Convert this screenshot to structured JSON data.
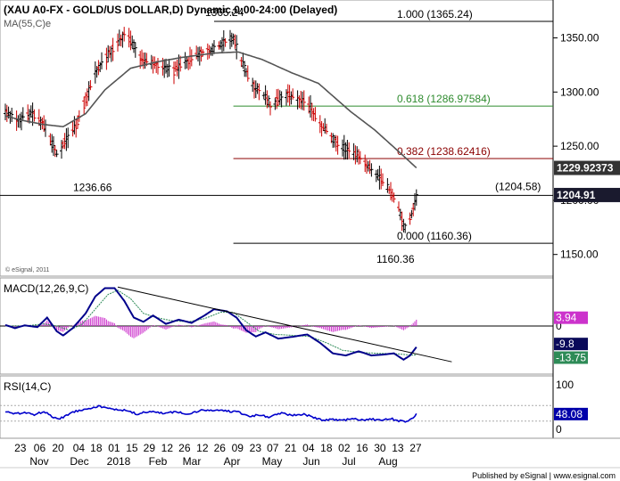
{
  "header": {
    "title": "(XAU A0-FX - GOLD/US DOLLAR,D) Dynamic,0:00-24:00 (Delayed)",
    "ma_label": "MA(55,C)e",
    "copyright": "© eSignal, 2011"
  },
  "footer": {
    "published": "Published by eSignal | www.esignal.com"
  },
  "colors": {
    "price_up": "#000000",
    "price_down": "#cc0000",
    "ma": "#555555",
    "fib_100": "#000000",
    "fib_618": "#2e8b2e",
    "fib_382": "#8b0000",
    "macd_line": "#00008b",
    "signal_line": "#2e8b57",
    "histogram": "#cc33cc",
    "rsi_line": "#0000cc",
    "badge_ma": "#333333",
    "badge_last": "#1a1a2e",
    "badge_hist": "#cc33cc",
    "badge_macd": "#0a0a5a",
    "badge_signal": "#2e8b57",
    "badge_rsi": "#0000aa"
  },
  "chart_data": [
    {
      "type": "candlestick",
      "panel": "price",
      "title": "(XAU A0-FX - GOLD/US DOLLAR,D) Dynamic,0:00-24:00 (Delayed)",
      "ylim": [
        1130,
        1385
      ],
      "yticks": [
        1150.0,
        1200.0,
        1250.0,
        1300.0,
        1350.0
      ],
      "ytick_labels": [
        "1150.00",
        "1200.00",
        "1250.00",
        "1300.00",
        "1350.00"
      ],
      "x_labels": [
        "23",
        "06",
        "20",
        "04",
        "18",
        "01",
        "15",
        "29",
        "12",
        "26",
        "12",
        "26",
        "09",
        "23",
        "07",
        "21",
        "04",
        "18",
        "02",
        "16",
        "30",
        "13",
        "27"
      ],
      "month_labels": [
        "Nov",
        "Dec",
        "2018",
        "Feb",
        "Mar",
        "Apr",
        "May",
        "Jun",
        "Jul",
        "Aug"
      ],
      "anchors": [
        {
          "d": 0,
          "v": 1282
        },
        {
          "d": 8,
          "v": 1274
        },
        {
          "d": 16,
          "v": 1280
        },
        {
          "d": 24,
          "v": 1270
        },
        {
          "d": 30,
          "v": 1250
        },
        {
          "d": 33,
          "v": 1240
        },
        {
          "d": 36,
          "v": 1252
        },
        {
          "d": 44,
          "v": 1268
        },
        {
          "d": 56,
          "v": 1318
        },
        {
          "d": 68,
          "v": 1342
        },
        {
          "d": 75,
          "v": 1355
        },
        {
          "d": 85,
          "v": 1330
        },
        {
          "d": 95,
          "v": 1325
        },
        {
          "d": 105,
          "v": 1320
        },
        {
          "d": 115,
          "v": 1330
        },
        {
          "d": 125,
          "v": 1338
        },
        {
          "d": 130,
          "v": 1340
        },
        {
          "d": 138,
          "v": 1348
        },
        {
          "d": 142,
          "v": 1350
        },
        {
          "d": 148,
          "v": 1325
        },
        {
          "d": 155,
          "v": 1305
        },
        {
          "d": 160,
          "v": 1300
        },
        {
          "d": 165,
          "v": 1288
        },
        {
          "d": 172,
          "v": 1295
        },
        {
          "d": 176,
          "v": 1298
        },
        {
          "d": 182,
          "v": 1294
        },
        {
          "d": 188,
          "v": 1290
        },
        {
          "d": 195,
          "v": 1272
        },
        {
          "d": 205,
          "v": 1255
        },
        {
          "d": 212,
          "v": 1248
        },
        {
          "d": 220,
          "v": 1240
        },
        {
          "d": 228,
          "v": 1228
        },
        {
          "d": 236,
          "v": 1216
        },
        {
          "d": 244,
          "v": 1198
        },
        {
          "d": 248,
          "v": 1178
        },
        {
          "d": 250,
          "v": 1172
        },
        {
          "d": 253,
          "v": 1188
        },
        {
          "d": 256,
          "v": 1202
        }
      ],
      "ma_anchors": [
        {
          "d": 0,
          "v": 1278
        },
        {
          "d": 10,
          "v": 1274
        },
        {
          "d": 24,
          "v": 1270
        },
        {
          "d": 36,
          "v": 1268
        },
        {
          "d": 50,
          "v": 1280
        },
        {
          "d": 62,
          "v": 1302
        },
        {
          "d": 78,
          "v": 1322
        },
        {
          "d": 95,
          "v": 1328
        },
        {
          "d": 110,
          "v": 1332
        },
        {
          "d": 130,
          "v": 1336
        },
        {
          "d": 145,
          "v": 1337
        },
        {
          "d": 160,
          "v": 1330
        },
        {
          "d": 178,
          "v": 1318
        },
        {
          "d": 195,
          "v": 1308
        },
        {
          "d": 205,
          "v": 1295
        },
        {
          "d": 215,
          "v": 1282
        },
        {
          "d": 230,
          "v": 1265
        },
        {
          "d": 245,
          "v": 1245
        },
        {
          "d": 256,
          "v": 1230
        }
      ],
      "price_annotations": [
        {
          "text": "1236.66",
          "value": 1236.66,
          "day": 33
        },
        {
          "text": "1365.24",
          "value": 1365.24,
          "day": 142
        },
        {
          "text": "1160.36",
          "value": 1160.36,
          "day": 250
        }
      ],
      "fib_levels": [
        {
          "ratio": "1.000",
          "value": 1365.24,
          "label": "1.000 (1365.24)",
          "color": "#000000"
        },
        {
          "ratio": "0.618",
          "value": 1286.97584,
          "label": "0.618 (1286.97584)",
          "color": "#2e8b2e"
        },
        {
          "ratio": "0.382",
          "value": 1238.62416,
          "label": "0.382 (1238.62416)",
          "color": "#8b0000"
        },
        {
          "ratio": "0.000",
          "value": 1160.36,
          "label": "0.000 (1160.36)",
          "color": "#000000"
        }
      ],
      "support_line": {
        "value": 1204.58,
        "label": "(1204.58)"
      },
      "right_badges": [
        {
          "text": "1229.92373",
          "value": 1229.92373
        },
        {
          "text": "1204.91",
          "value": 1204.91
        }
      ]
    },
    {
      "type": "macd",
      "panel": "macd",
      "title": "MACD(12,26,9,C)",
      "zero_label": "0",
      "macd_anchors": [
        {
          "d": 0,
          "v": 0.5
        },
        {
          "d": 6,
          "v": -1.0
        },
        {
          "d": 12,
          "v": 0.3
        },
        {
          "d": 20,
          "v": -0.5
        },
        {
          "d": 26,
          "v": 4.0
        },
        {
          "d": 32,
          "v": -2.5
        },
        {
          "d": 36,
          "v": -4.5
        },
        {
          "d": 42,
          "v": -1.0
        },
        {
          "d": 50,
          "v": 6.0
        },
        {
          "d": 56,
          "v": 14.0
        },
        {
          "d": 62,
          "v": 18.0
        },
        {
          "d": 68,
          "v": 18.0
        },
        {
          "d": 74,
          "v": 12.0
        },
        {
          "d": 80,
          "v": 4.0
        },
        {
          "d": 86,
          "v": 2.0
        },
        {
          "d": 92,
          "v": 5.0
        },
        {
          "d": 100,
          "v": 1.0
        },
        {
          "d": 108,
          "v": 3.0
        },
        {
          "d": 116,
          "v": 1.5
        },
        {
          "d": 124,
          "v": 5.0
        },
        {
          "d": 130,
          "v": 8.0
        },
        {
          "d": 138,
          "v": 7.0
        },
        {
          "d": 144,
          "v": 4.0
        },
        {
          "d": 150,
          "v": -2.0
        },
        {
          "d": 156,
          "v": -5.0
        },
        {
          "d": 162,
          "v": -3.0
        },
        {
          "d": 170,
          "v": -6.0
        },
        {
          "d": 180,
          "v": -5.0
        },
        {
          "d": 188,
          "v": -4.0
        },
        {
          "d": 196,
          "v": -8.0
        },
        {
          "d": 204,
          "v": -13.0
        },
        {
          "d": 212,
          "v": -14.0
        },
        {
          "d": 220,
          "v": -12.0
        },
        {
          "d": 228,
          "v": -14.0
        },
        {
          "d": 236,
          "v": -13.5
        },
        {
          "d": 242,
          "v": -13.0
        },
        {
          "d": 248,
          "v": -16.0
        },
        {
          "d": 252,
          "v": -14.0
        },
        {
          "d": 256,
          "v": -10.0
        }
      ],
      "signal_anchors": [
        {
          "d": 0,
          "v": 0.0
        },
        {
          "d": 12,
          "v": 0.0
        },
        {
          "d": 24,
          "v": 1.0
        },
        {
          "d": 32,
          "v": 0.0
        },
        {
          "d": 40,
          "v": -2.0
        },
        {
          "d": 48,
          "v": 1.0
        },
        {
          "d": 56,
          "v": 8.0
        },
        {
          "d": 64,
          "v": 15.0
        },
        {
          "d": 70,
          "v": 17.0
        },
        {
          "d": 78,
          "v": 13.0
        },
        {
          "d": 86,
          "v": 6.0
        },
        {
          "d": 94,
          "v": 4.0
        },
        {
          "d": 104,
          "v": 2.5
        },
        {
          "d": 114,
          "v": 2.0
        },
        {
          "d": 124,
          "v": 3.5
        },
        {
          "d": 134,
          "v": 6.5
        },
        {
          "d": 142,
          "v": 6.5
        },
        {
          "d": 150,
          "v": 2.0
        },
        {
          "d": 158,
          "v": -2.5
        },
        {
          "d": 168,
          "v": -4.0
        },
        {
          "d": 180,
          "v": -4.5
        },
        {
          "d": 190,
          "v": -5.0
        },
        {
          "d": 200,
          "v": -8.0
        },
        {
          "d": 210,
          "v": -11.5
        },
        {
          "d": 220,
          "v": -12.5
        },
        {
          "d": 232,
          "v": -13.0
        },
        {
          "d": 244,
          "v": -13.2
        },
        {
          "d": 252,
          "v": -13.8
        },
        {
          "d": 256,
          "v": -13.75
        }
      ],
      "trendline": {
        "d1": 70,
        "v1": 18.5,
        "d2": 278,
        "v2": -17.0
      },
      "ylim": [
        -22,
        22
      ],
      "badges": [
        {
          "text": "3.94",
          "value": 3.94
        },
        {
          "text": "-9.8",
          "value": -9.8
        },
        {
          "text": "-13.75",
          "value": -13.75
        }
      ]
    },
    {
      "type": "line",
      "panel": "rsi",
      "title": "RSI(14,C)",
      "ylim": [
        0,
        100
      ],
      "yticks": [
        100,
        0
      ],
      "ytick_labels": [
        "100",
        "0"
      ],
      "levels": [
        70,
        30
      ],
      "anchors": [
        {
          "d": 0,
          "v": 55
        },
        {
          "d": 6,
          "v": 48
        },
        {
          "d": 12,
          "v": 52
        },
        {
          "d": 18,
          "v": 47
        },
        {
          "d": 24,
          "v": 54
        },
        {
          "d": 30,
          "v": 40
        },
        {
          "d": 34,
          "v": 36
        },
        {
          "d": 40,
          "v": 50
        },
        {
          "d": 46,
          "v": 58
        },
        {
          "d": 52,
          "v": 63
        },
        {
          "d": 58,
          "v": 68
        },
        {
          "d": 64,
          "v": 62
        },
        {
          "d": 70,
          "v": 60
        },
        {
          "d": 76,
          "v": 56
        },
        {
          "d": 82,
          "v": 48
        },
        {
          "d": 90,
          "v": 55
        },
        {
          "d": 98,
          "v": 50
        },
        {
          "d": 106,
          "v": 53
        },
        {
          "d": 114,
          "v": 49
        },
        {
          "d": 122,
          "v": 57
        },
        {
          "d": 130,
          "v": 58
        },
        {
          "d": 138,
          "v": 56
        },
        {
          "d": 146,
          "v": 52
        },
        {
          "d": 152,
          "v": 42
        },
        {
          "d": 158,
          "v": 46
        },
        {
          "d": 164,
          "v": 40
        },
        {
          "d": 172,
          "v": 50
        },
        {
          "d": 178,
          "v": 46
        },
        {
          "d": 186,
          "v": 47
        },
        {
          "d": 192,
          "v": 40
        },
        {
          "d": 198,
          "v": 32
        },
        {
          "d": 204,
          "v": 34
        },
        {
          "d": 210,
          "v": 31
        },
        {
          "d": 216,
          "v": 36
        },
        {
          "d": 222,
          "v": 33
        },
        {
          "d": 228,
          "v": 35
        },
        {
          "d": 234,
          "v": 32
        },
        {
          "d": 240,
          "v": 36
        },
        {
          "d": 246,
          "v": 30
        },
        {
          "d": 250,
          "v": 27
        },
        {
          "d": 254,
          "v": 40
        },
        {
          "d": 256,
          "v": 48
        }
      ],
      "badge": {
        "text": "48.08",
        "value": 48.08
      }
    }
  ]
}
